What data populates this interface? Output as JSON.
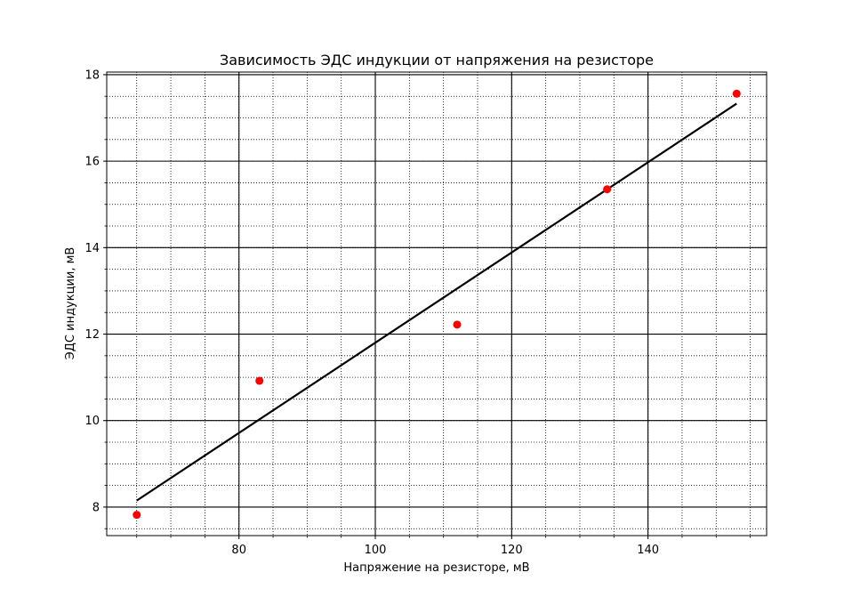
{
  "chart_data": {
    "type": "scatter",
    "title": "Зависимость ЭДС индукции от напряжения на резисторе",
    "xlabel": "Напряжение на резисторе, мВ",
    "ylabel": "ЭДС индукции, мВ",
    "xlim": [
      60.6,
      157.4
    ],
    "ylim": [
      7.34,
      18.06
    ],
    "xticks": [
      80,
      100,
      120,
      140
    ],
    "yticks": [
      8,
      10,
      12,
      14,
      16,
      18
    ],
    "x_minor_step": 5,
    "y_minor_step": 0.5,
    "grid": {
      "major": true,
      "minor": true,
      "major_style": "solid",
      "minor_style": "dotted"
    },
    "series": [
      {
        "kind": "points",
        "color": "#ff0000",
        "x": [
          65,
          83,
          112,
          134,
          153
        ],
        "y": [
          7.82,
          10.92,
          12.22,
          15.35,
          17.56
        ]
      },
      {
        "kind": "fit-line",
        "color": "#000000",
        "x": [
          65,
          153
        ],
        "y": [
          8.15,
          17.33
        ]
      }
    ]
  }
}
